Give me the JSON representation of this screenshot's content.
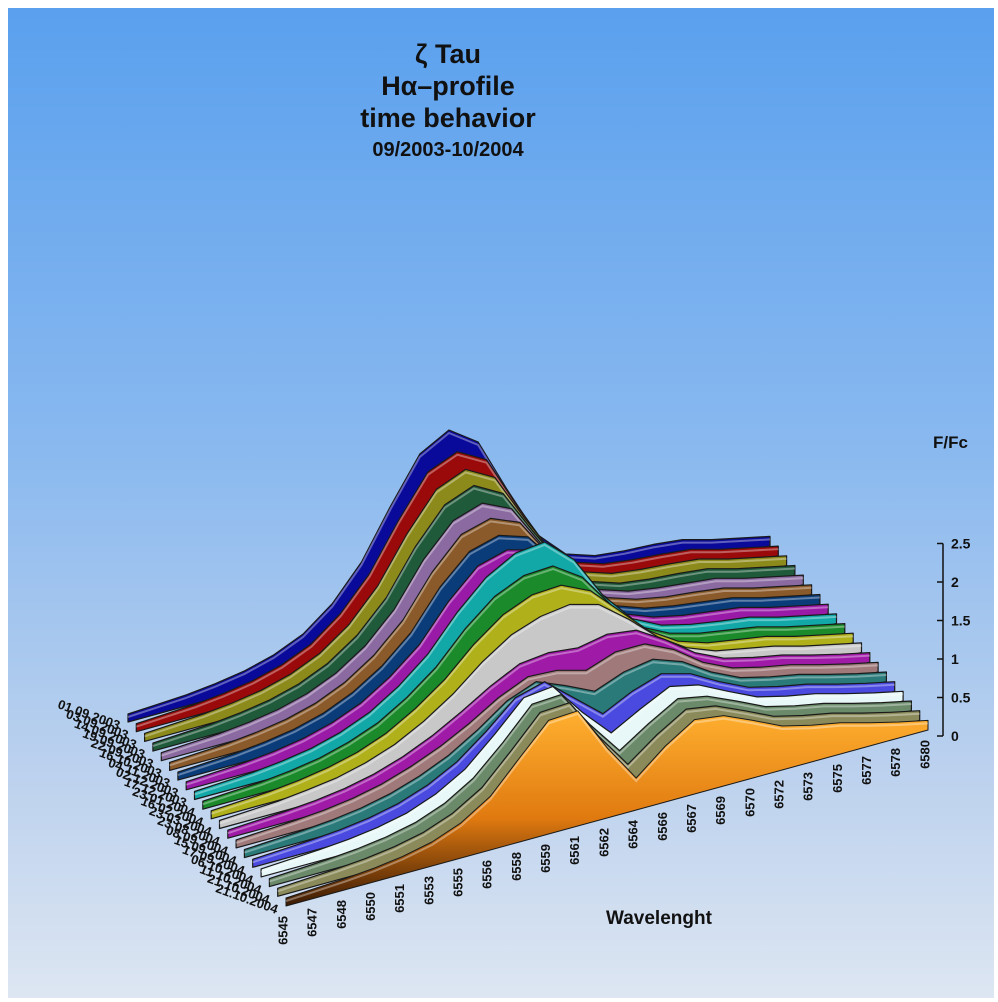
{
  "chart_data": {
    "type": "area",
    "title": [
      "ζ Tau",
      "Hα–profile",
      "time behavior",
      "09/2003-10/2004"
    ],
    "xlabel": "Wavelenght",
    "zlabel": "F/Fc",
    "x": [
      6545,
      6547,
      6548,
      6550,
      6551,
      6553,
      6555,
      6556,
      6558,
      6559,
      6561,
      6562,
      6564,
      6566,
      6567,
      6569,
      6570,
      6572,
      6573,
      6575,
      6577,
      6578,
      6580
    ],
    "zticks": [
      "0",
      "0.5",
      "1",
      "1.5",
      "2",
      "2.5"
    ],
    "zlim": [
      0,
      2.5
    ],
    "series": [
      {
        "name": "01.09.2003",
        "color": "#0a0a9a",
        "values": [
          0.1,
          0.12,
          0.14,
          0.18,
          0.24,
          0.34,
          0.5,
          0.78,
          1.2,
          1.8,
          2.35,
          2.55,
          2.3,
          1.6,
          0.95,
          0.6,
          0.48,
          0.44,
          0.42,
          0.38,
          0.28,
          0.2,
          0.12
        ]
      },
      {
        "name": "03.09.2003",
        "color": "#9a0a0a",
        "values": [
          0.1,
          0.12,
          0.14,
          0.18,
          0.24,
          0.34,
          0.5,
          0.78,
          1.18,
          1.75,
          2.25,
          2.4,
          2.2,
          1.55,
          0.95,
          0.62,
          0.5,
          0.45,
          0.42,
          0.38,
          0.28,
          0.2,
          0.12
        ]
      },
      {
        "name": "14.09.2003",
        "color": "#8c8a1a",
        "values": [
          0.1,
          0.12,
          0.14,
          0.18,
          0.24,
          0.34,
          0.5,
          0.76,
          1.15,
          1.7,
          2.15,
          2.3,
          2.1,
          1.5,
          0.95,
          0.62,
          0.5,
          0.45,
          0.42,
          0.38,
          0.28,
          0.2,
          0.12
        ]
      },
      {
        "name": "19.09.2003",
        "color": "#1f5a3a",
        "values": [
          0.1,
          0.12,
          0.14,
          0.18,
          0.24,
          0.34,
          0.5,
          0.75,
          1.12,
          1.66,
          2.08,
          2.22,
          2.02,
          1.46,
          0.94,
          0.62,
          0.5,
          0.45,
          0.42,
          0.38,
          0.28,
          0.2,
          0.12
        ]
      },
      {
        "name": "22.09.2003",
        "color": "#8a6aa0",
        "values": [
          0.1,
          0.12,
          0.14,
          0.18,
          0.24,
          0.34,
          0.5,
          0.74,
          1.1,
          1.62,
          2.0,
          2.12,
          1.95,
          1.42,
          0.94,
          0.64,
          0.52,
          0.46,
          0.42,
          0.38,
          0.28,
          0.2,
          0.12
        ]
      },
      {
        "name": "16.10.2003",
        "color": "#8a5a2a",
        "values": [
          0.1,
          0.12,
          0.14,
          0.18,
          0.24,
          0.34,
          0.5,
          0.74,
          1.08,
          1.58,
          1.95,
          2.05,
          1.9,
          1.4,
          0.95,
          0.66,
          0.54,
          0.47,
          0.43,
          0.38,
          0.28,
          0.2,
          0.12
        ]
      },
      {
        "name": "04.11.2003",
        "color": "#0a3c7a",
        "values": [
          0.1,
          0.12,
          0.14,
          0.18,
          0.24,
          0.34,
          0.5,
          0.73,
          1.05,
          1.52,
          1.86,
          1.96,
          1.84,
          1.42,
          0.98,
          0.68,
          0.55,
          0.48,
          0.43,
          0.38,
          0.28,
          0.2,
          0.12
        ]
      },
      {
        "name": "02.12.2003",
        "color": "#9a1aa8",
        "values": [
          0.1,
          0.12,
          0.14,
          0.18,
          0.24,
          0.34,
          0.49,
          0.72,
          1.02,
          1.46,
          1.8,
          1.9,
          1.8,
          1.45,
          1.0,
          0.7,
          0.56,
          0.48,
          0.43,
          0.38,
          0.28,
          0.2,
          0.12
        ]
      },
      {
        "name": "17.12.2003",
        "color": "#12a8a8",
        "values": [
          0.1,
          0.12,
          0.14,
          0.18,
          0.24,
          0.34,
          0.49,
          0.72,
          1.02,
          1.44,
          1.78,
          1.98,
          2.02,
          1.7,
          1.15,
          0.76,
          0.58,
          0.49,
          0.43,
          0.38,
          0.28,
          0.2,
          0.12
        ]
      },
      {
        "name": "23.01.2004",
        "color": "#1a8a2a",
        "values": [
          0.1,
          0.12,
          0.14,
          0.18,
          0.24,
          0.34,
          0.48,
          0.7,
          0.98,
          1.36,
          1.66,
          1.82,
          1.84,
          1.6,
          1.15,
          0.78,
          0.6,
          0.5,
          0.44,
          0.38,
          0.28,
          0.2,
          0.12
        ]
      },
      {
        "name": "16.02.2004",
        "color": "#b0b01a",
        "values": [
          0.1,
          0.12,
          0.14,
          0.18,
          0.24,
          0.33,
          0.47,
          0.68,
          0.94,
          1.28,
          1.55,
          1.7,
          1.72,
          1.55,
          1.2,
          0.85,
          0.62,
          0.5,
          0.44,
          0.38,
          0.28,
          0.2,
          0.12
        ]
      },
      {
        "name": "23.03.2004",
        "color": "#c8c8c8",
        "values": [
          0.1,
          0.12,
          0.14,
          0.18,
          0.23,
          0.32,
          0.45,
          0.64,
          0.88,
          1.18,
          1.42,
          1.55,
          1.6,
          1.5,
          1.22,
          0.9,
          0.66,
          0.52,
          0.45,
          0.38,
          0.28,
          0.2,
          0.12
        ]
      },
      {
        "name": "23.08.2004",
        "color": "#a01aa8",
        "values": [
          0.1,
          0.12,
          0.14,
          0.17,
          0.22,
          0.3,
          0.42,
          0.58,
          0.78,
          1.0,
          1.18,
          1.22,
          1.18,
          1.25,
          1.2,
          0.98,
          0.72,
          0.55,
          0.46,
          0.39,
          0.29,
          0.2,
          0.12
        ]
      },
      {
        "name": "08.09.2004",
        "color": "#a07a7a",
        "values": [
          0.1,
          0.12,
          0.14,
          0.17,
          0.22,
          0.3,
          0.42,
          0.57,
          0.76,
          0.98,
          1.14,
          1.12,
          1.02,
          1.15,
          1.15,
          0.98,
          0.72,
          0.55,
          0.46,
          0.39,
          0.29,
          0.2,
          0.12
        ]
      },
      {
        "name": "15.09.2004",
        "color": "#2a7a7a",
        "values": [
          0.1,
          0.12,
          0.14,
          0.17,
          0.22,
          0.3,
          0.42,
          0.58,
          0.8,
          1.06,
          1.2,
          1.05,
          0.88,
          1.02,
          1.08,
          0.95,
          0.72,
          0.55,
          0.46,
          0.39,
          0.29,
          0.2,
          0.12
        ]
      },
      {
        "name": "17.09.2004",
        "color": "#4a4ae0",
        "values": [
          0.1,
          0.12,
          0.14,
          0.17,
          0.22,
          0.3,
          0.43,
          0.62,
          0.9,
          1.22,
          1.32,
          1.02,
          0.72,
          0.9,
          1.02,
          0.92,
          0.72,
          0.55,
          0.46,
          0.39,
          0.29,
          0.2,
          0.12
        ]
      },
      {
        "name": "06.10.2004",
        "color": "#e8f8f8",
        "values": [
          0.1,
          0.12,
          0.14,
          0.17,
          0.22,
          0.3,
          0.44,
          0.65,
          0.98,
          1.34,
          1.38,
          0.96,
          0.6,
          0.8,
          0.98,
          0.9,
          0.72,
          0.55,
          0.46,
          0.39,
          0.29,
          0.2,
          0.12
        ]
      },
      {
        "name": "11.10.2004",
        "color": "#6a8a6a",
        "values": [
          0.1,
          0.12,
          0.14,
          0.17,
          0.22,
          0.3,
          0.44,
          0.66,
          1.0,
          1.38,
          1.4,
          0.92,
          0.5,
          0.74,
          0.95,
          0.88,
          0.72,
          0.55,
          0.46,
          0.39,
          0.29,
          0.2,
          0.12
        ]
      },
      {
        "name": "21.10.2004",
        "color": "#8a8a5a",
        "values": [
          0.1,
          0.12,
          0.14,
          0.17,
          0.22,
          0.3,
          0.44,
          0.66,
          1.02,
          1.4,
          1.42,
          0.9,
          0.45,
          0.72,
          0.94,
          0.88,
          0.72,
          0.55,
          0.46,
          0.39,
          0.29,
          0.2,
          0.12
        ]
      },
      {
        "name": "21.10.2004",
        "color": "#f5a020",
        "values": [
          0.1,
          0.12,
          0.14,
          0.17,
          0.22,
          0.3,
          0.44,
          0.67,
          1.05,
          1.42,
          1.44,
          0.88,
          0.4,
          0.7,
          0.93,
          0.88,
          0.72,
          0.55,
          0.46,
          0.39,
          0.29,
          0.2,
          0.12
        ]
      }
    ],
    "grid": false,
    "legend": "left"
  }
}
